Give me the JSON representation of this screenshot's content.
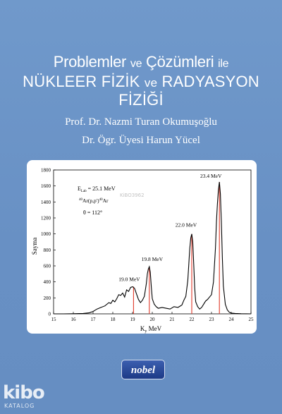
{
  "cover": {
    "title_line1_main": "Problemler",
    "title_line1_join": "ve",
    "title_line1_main2": "Çözümleri",
    "title_line1_tail": "ile",
    "title_line2_a": "NÜKLEER FİZİK",
    "title_line2_join": "ve",
    "title_line2_b": "RADYASYON FİZİĞİ",
    "authors": [
      "Prof. Dr. Nazmi Turan Okumuşoğlu",
      "Dr. Ögr. Üyesi Harun Yücel"
    ],
    "publisher": "nobel",
    "watermark_logo": "kibo",
    "watermark_sub": "KATALOG",
    "watermark_id": "KiBO3962"
  },
  "chart_data": {
    "type": "line",
    "xlabel": "Ky MeV",
    "xlabel_main": "K",
    "xlabel_sub": "y",
    "xlabel_unit": "MeV",
    "ylabel": "Sayma",
    "xlim": [
      15,
      25
    ],
    "ylim": [
      0,
      1800
    ],
    "xticks": [
      15,
      16,
      17,
      18,
      19,
      20,
      21,
      22,
      23,
      24,
      25
    ],
    "yticks": [
      0,
      200,
      400,
      600,
      800,
      1000,
      1200,
      1400,
      1600,
      1800
    ],
    "annotations_main": [
      "E",
      "= 25.1 MeV",
      "Ar(p,p')",
      "Ar",
      "θ = 112°"
    ],
    "annotation_elab_sub": "Lab",
    "annotation_sup": "40",
    "peaks": [
      {
        "label": "19.0 MeV",
        "x": 19.05,
        "y": 340
      },
      {
        "label": "19.8 MeV",
        "x": 19.85,
        "y": 590
      },
      {
        "label": "22.0 MeV",
        "x": 22.0,
        "y": 1000
      },
      {
        "label": "23.4 MeV",
        "x": 23.4,
        "y": 1650
      }
    ],
    "line_color": "#000000",
    "peak_line_color": "#e03a2a",
    "grid": false,
    "legend": "none",
    "series": [
      {
        "x": [
          15.0,
          15.5,
          16.0,
          16.5,
          16.8,
          17.0,
          17.2,
          17.4,
          17.6,
          17.8,
          17.9,
          18.0,
          18.1,
          18.2,
          18.3,
          18.4,
          18.5,
          18.6,
          18.7,
          18.8,
          18.9,
          19.0,
          19.1,
          19.2,
          19.3,
          19.4,
          19.5,
          19.6,
          19.7,
          19.75,
          19.8,
          19.85,
          19.9,
          19.95,
          20.0,
          20.1,
          20.2,
          20.3,
          20.5,
          20.7,
          20.9,
          21.1,
          21.3,
          21.5,
          21.6,
          21.7,
          21.8,
          21.85,
          21.9,
          21.95,
          22.0,
          22.05,
          22.1,
          22.15,
          22.2,
          22.3,
          22.4,
          22.5,
          22.6,
          22.7,
          22.8,
          22.9,
          23.0,
          23.1,
          23.2,
          23.25,
          23.3,
          23.35,
          23.4,
          23.45,
          23.5,
          23.55,
          23.6,
          23.7,
          23.8,
          23.9,
          24.0,
          24.2,
          24.5,
          25.0
        ],
        "y": [
          0,
          0,
          2,
          5,
          12,
          30,
          60,
          80,
          100,
          140,
          130,
          170,
          150,
          190,
          240,
          230,
          260,
          210,
          300,
          280,
          330,
          340,
          320,
          250,
          180,
          140,
          170,
          220,
          380,
          500,
          560,
          590,
          520,
          340,
          190,
          120,
          90,
          70,
          80,
          70,
          60,
          90,
          80,
          110,
          170,
          220,
          420,
          620,
          820,
          950,
          1000,
          900,
          620,
          320,
          150,
          90,
          60,
          80,
          120,
          160,
          180,
          210,
          240,
          400,
          820,
          1150,
          1380,
          1550,
          1650,
          1500,
          1150,
          700,
          350,
          120,
          50,
          20,
          10,
          5,
          2,
          0
        ]
      }
    ]
  }
}
